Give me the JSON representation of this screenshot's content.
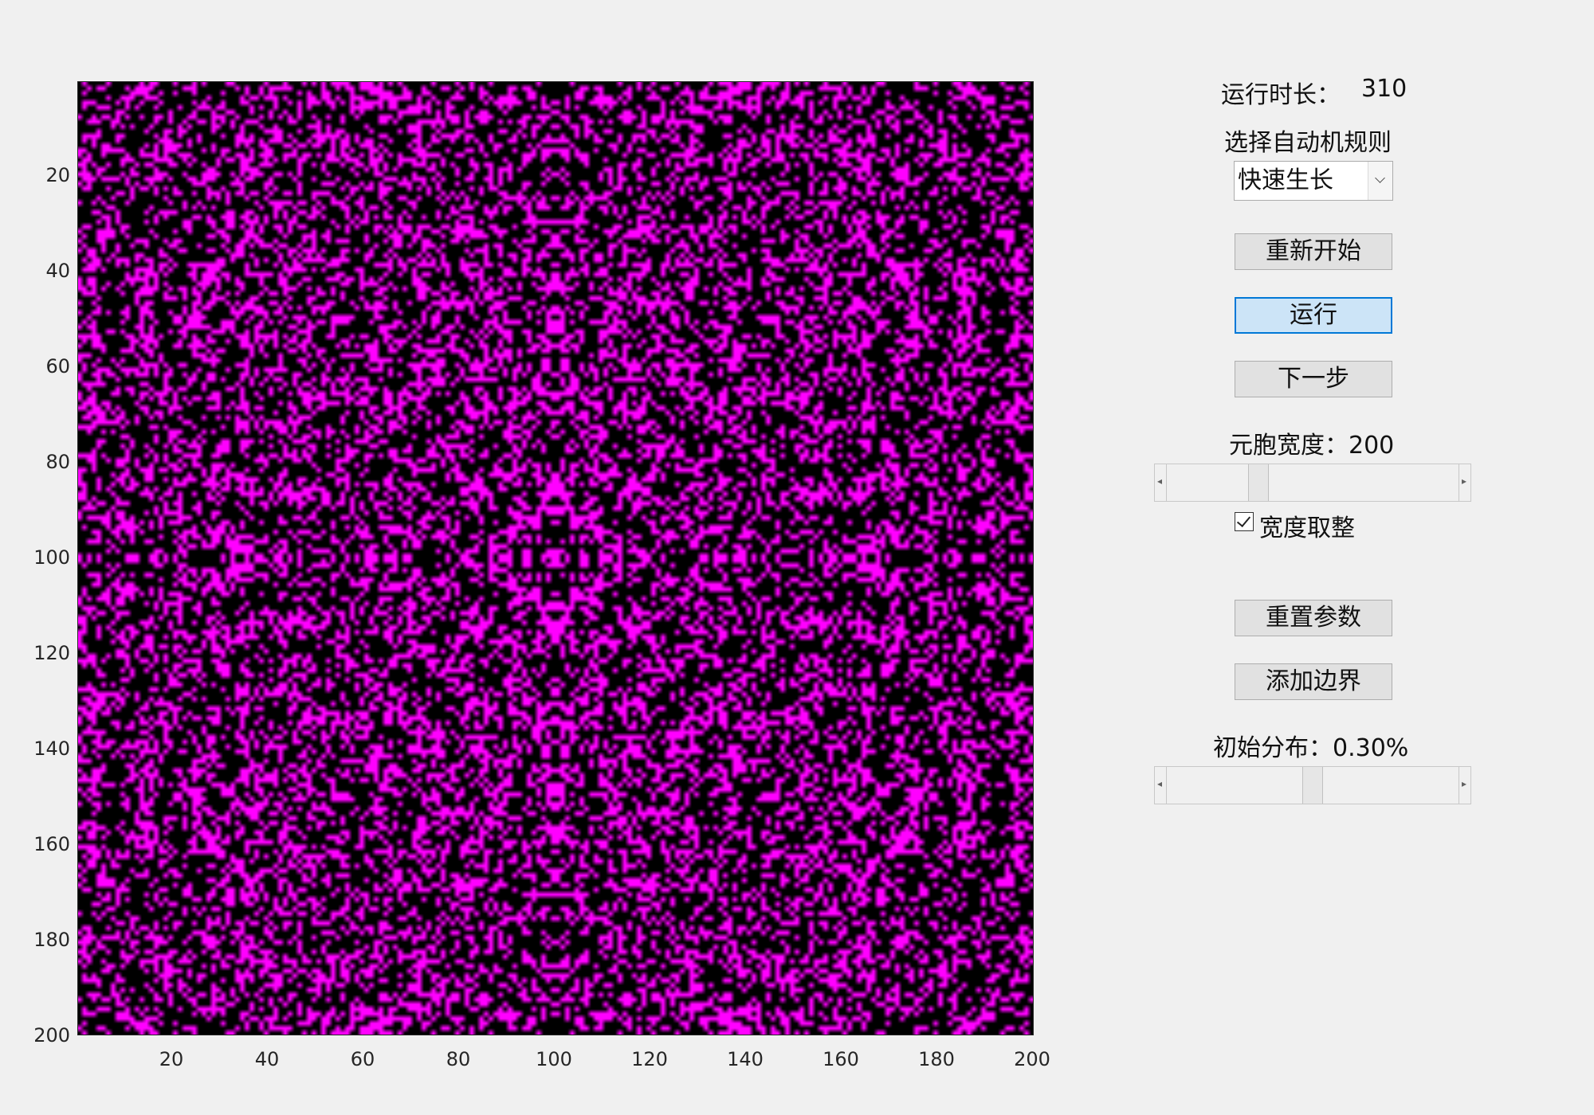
{
  "plot": {
    "grid_size": 200,
    "background_color": "#000000",
    "cell_color": "#ff00ff",
    "x_ticks": [
      "20",
      "40",
      "60",
      "80",
      "100",
      "120",
      "140",
      "160",
      "180",
      "200"
    ],
    "y_ticks": [
      "20",
      "40",
      "60",
      "80",
      "100",
      "120",
      "140",
      "160",
      "180",
      "200"
    ]
  },
  "controls": {
    "runtime_label": "运行时长：",
    "runtime_value": "310",
    "rule_label": "选择自动机规则",
    "rule_selected": "快速生长",
    "restart_button": "重新开始",
    "run_button": "运行",
    "step_button": "下一步",
    "cell_width_label": "元胞宽度：200",
    "cell_width_slider_value": 0.3,
    "round_width_checkbox_label": "宽度取整",
    "round_width_checked": true,
    "reset_params_button": "重置参数",
    "add_border_button": "添加边界",
    "initial_dist_label": "初始分布：0.30%",
    "initial_dist_slider_value": 0.5
  },
  "icons": {
    "dropdown": "chevron-down-icon",
    "slider_left": "arrow-left-icon",
    "slider_right": "arrow-right-icon",
    "checkbox": "check-icon"
  }
}
